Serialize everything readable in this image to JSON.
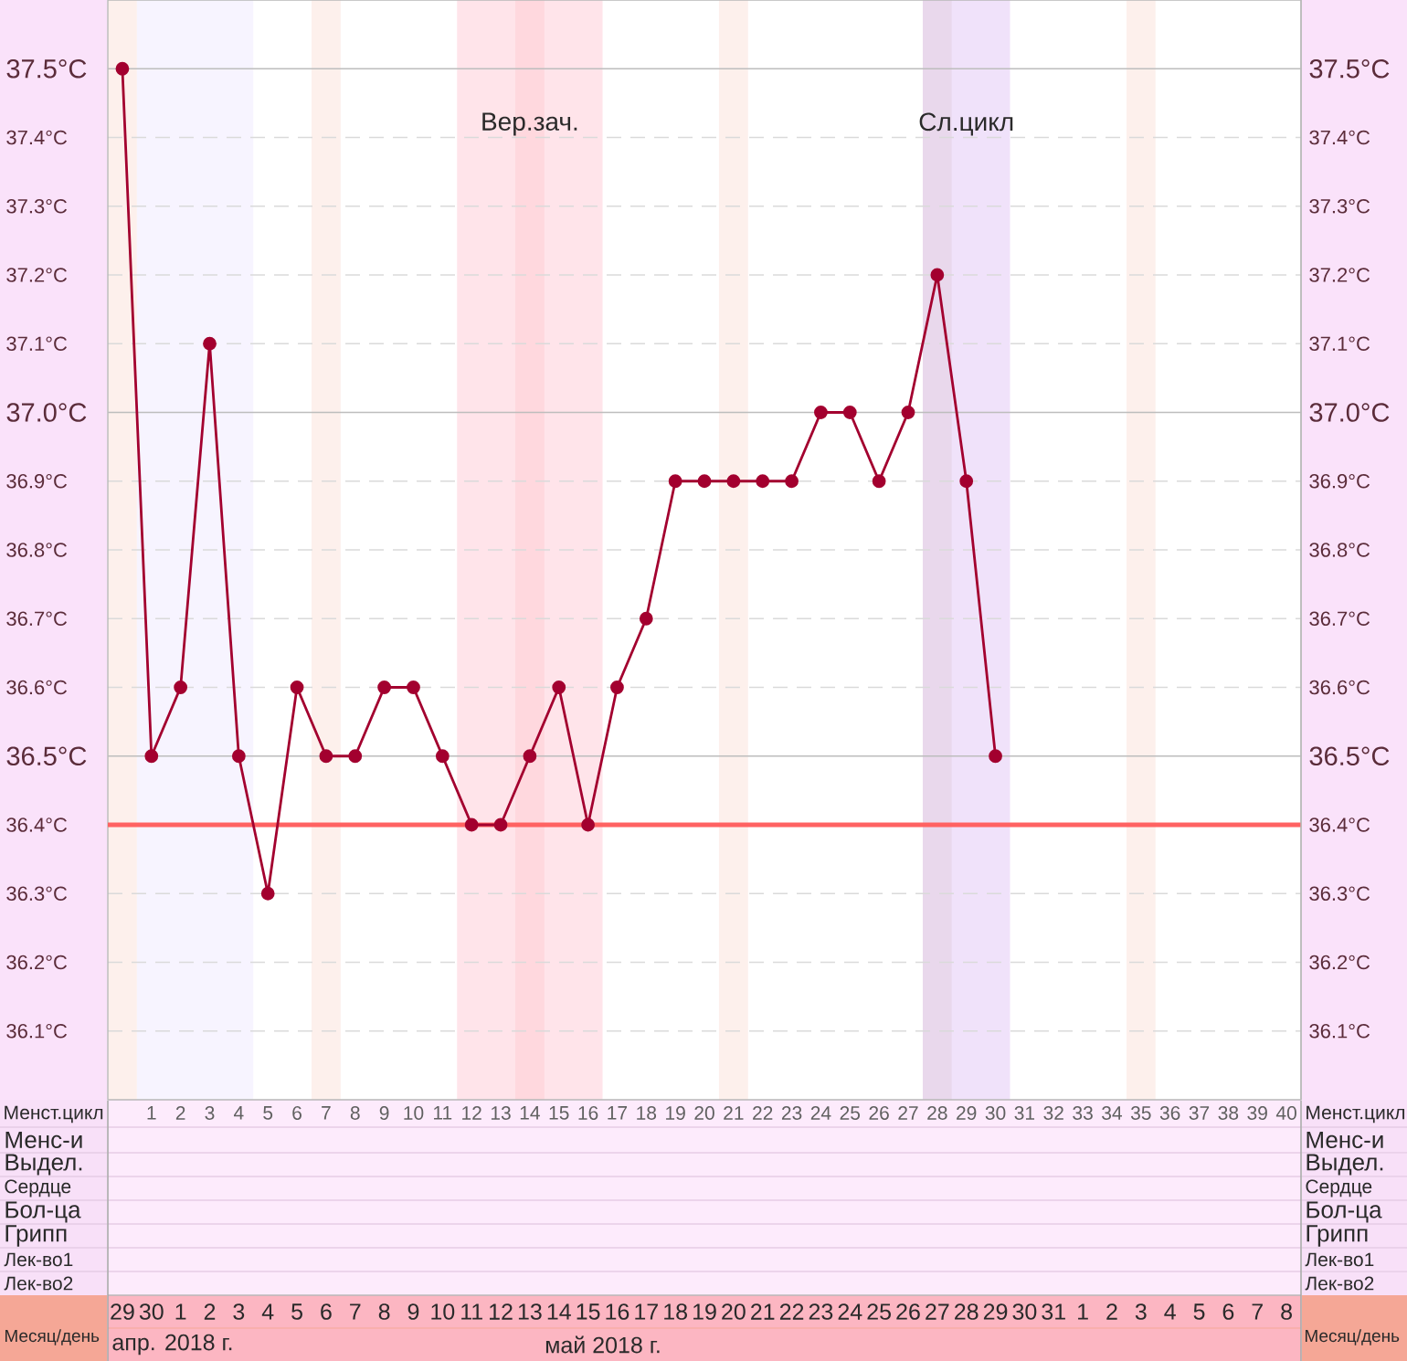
{
  "chart_data": {
    "type": "line",
    "xlabel": "Менст.цикл",
    "x": [
      0,
      1,
      2,
      3,
      4,
      5,
      6,
      7,
      8,
      9,
      10,
      11,
      12,
      13,
      14,
      15,
      16,
      17,
      18,
      19,
      20,
      21,
      22,
      23,
      24,
      25,
      26,
      27,
      28,
      29,
      30
    ],
    "values": [
      37.5,
      36.5,
      36.6,
      37.1,
      36.5,
      36.3,
      36.6,
      36.5,
      36.5,
      36.6,
      36.6,
      36.5,
      36.4,
      36.4,
      36.5,
      36.6,
      36.4,
      36.6,
      36.7,
      36.9,
      36.9,
      36.9,
      36.9,
      36.9,
      37.0,
      37.0,
      36.9,
      37.0,
      37.2,
      36.9,
      36.5
    ],
    "color": "#A3002F",
    "marker": "circle",
    "line_style": "solid",
    "xlim": [
      -0.5,
      40.5
    ],
    "xticks": [
      1,
      2,
      3,
      4,
      5,
      6,
      7,
      8,
      9,
      10,
      11,
      12,
      13,
      14,
      15,
      16,
      17,
      18,
      19,
      20,
      21,
      22,
      23,
      24,
      25,
      26,
      27,
      28,
      29,
      30,
      31,
      32,
      33,
      34,
      35,
      36,
      37,
      38,
      39,
      40
    ],
    "ylim": [
      36.0,
      37.6
    ],
    "yticks": [
      {
        "value": 36.1,
        "label": "36.1°C"
      },
      {
        "value": 36.2,
        "label": "36.2°C"
      },
      {
        "value": 36.3,
        "label": "36.3°C"
      },
      {
        "value": 36.4,
        "label": "36.4°C"
      },
      {
        "value": 36.5,
        "label": "36.5°C"
      },
      {
        "value": 36.6,
        "label": "36.6°C"
      },
      {
        "value": 36.7,
        "label": "36.7°C"
      },
      {
        "value": 36.8,
        "label": "36.8°C"
      },
      {
        "value": 36.9,
        "label": "36.9°C"
      },
      {
        "value": 37.0,
        "label": "37.0°C"
      },
      {
        "value": 37.1,
        "label": "37.1°C"
      },
      {
        "value": 37.2,
        "label": "37.2°C"
      },
      {
        "value": 37.3,
        "label": "37.3°C"
      },
      {
        "value": 37.4,
        "label": "37.4°C"
      },
      {
        "value": 37.5,
        "label": "37.5°C"
      }
    ],
    "y2lim": [
      36.0,
      37.6
    ],
    "y2ticks": [
      {
        "value": 36.1,
        "label": "36.1°C"
      },
      {
        "value": 36.2,
        "label": "36.2°C"
      },
      {
        "value": 36.3,
        "label": "36.3°C"
      },
      {
        "value": 36.4,
        "label": "36.4°C"
      },
      {
        "value": 36.5,
        "label": "36.5°C"
      },
      {
        "value": 36.6,
        "label": "36.6°C"
      },
      {
        "value": 36.7,
        "label": "36.7°C"
      },
      {
        "value": 36.8,
        "label": "36.8°C"
      },
      {
        "value": 36.9,
        "label": "36.9°C"
      },
      {
        "value": 37.0,
        "label": "37.0°C"
      },
      {
        "value": 37.1,
        "label": "37.1°C"
      },
      {
        "value": 37.2,
        "label": "37.2°C"
      },
      {
        "value": 37.3,
        "label": "37.3°C"
      },
      {
        "value": 37.4,
        "label": "37.4°C"
      },
      {
        "value": 37.5,
        "label": "37.5°C"
      }
    ],
    "x2label": "Месяц/день",
    "x2lim": [
      "2018-04-28T12:00",
      "2018-06-08T12:00"
    ],
    "x2ticks": [
      {
        "value": "2018-04-29",
        "label": "29"
      },
      {
        "value": "2018-04-30",
        "label": "30"
      },
      {
        "value": "2018-05-01",
        "label": "1"
      },
      {
        "value": "2018-05-02",
        "label": "2"
      },
      {
        "value": "2018-05-03",
        "label": "3"
      },
      {
        "value": "2018-05-04",
        "label": "4"
      },
      {
        "value": "2018-05-05",
        "label": "5"
      },
      {
        "value": "2018-05-06",
        "label": "6"
      },
      {
        "value": "2018-05-07",
        "label": "7"
      },
      {
        "value": "2018-05-08",
        "label": "8"
      },
      {
        "value": "2018-05-09",
        "label": "9"
      },
      {
        "value": "2018-05-10",
        "label": "10"
      },
      {
        "value": "2018-05-11",
        "label": "11"
      },
      {
        "value": "2018-05-12",
        "label": "12"
      },
      {
        "value": "2018-05-13",
        "label": "13"
      },
      {
        "value": "2018-05-14",
        "label": "14"
      },
      {
        "value": "2018-05-15",
        "label": "15"
      },
      {
        "value": "2018-05-16",
        "label": "16"
      },
      {
        "value": "2018-05-17",
        "label": "17"
      },
      {
        "value": "2018-05-18",
        "label": "18"
      },
      {
        "value": "2018-05-19",
        "label": "19"
      },
      {
        "value": "2018-05-20",
        "label": "20"
      },
      {
        "value": "2018-05-21",
        "label": "21"
      },
      {
        "value": "2018-05-22",
        "label": "22"
      },
      {
        "value": "2018-05-23",
        "label": "23"
      },
      {
        "value": "2018-05-24",
        "label": "24"
      },
      {
        "value": "2018-05-25",
        "label": "25"
      },
      {
        "value": "2018-05-26",
        "label": "26"
      },
      {
        "value": "2018-05-27",
        "label": "27"
      },
      {
        "value": "2018-05-28",
        "label": "28"
      },
      {
        "value": "2018-05-29",
        "label": "29"
      },
      {
        "value": "2018-05-30",
        "label": "30"
      },
      {
        "value": "2018-05-31",
        "label": "31"
      },
      {
        "value": "2018-06-01",
        "label": "1"
      },
      {
        "value": "2018-06-02",
        "label": "2"
      },
      {
        "value": "2018-06-03",
        "label": "3"
      },
      {
        "value": "2018-06-04",
        "label": "4"
      },
      {
        "value": "2018-06-05",
        "label": "5"
      },
      {
        "value": "2018-06-06",
        "label": "6"
      },
      {
        "value": "2018-06-07",
        "label": "7"
      },
      {
        "value": "2018-06-08",
        "label": "8"
      }
    ],
    "grid": "y",
    "ref_lines": [
      {
        "axis": "y",
        "value": 36.4,
        "color": "#FF6262"
      }
    ],
    "bands": [
      {
        "axis": "x",
        "from": -0.5,
        "to": 0.5,
        "color": "#FDF0EC"
      },
      {
        "axis": "x",
        "from": 0.5,
        "to": 4.5,
        "color": "#F7F4FF"
      },
      {
        "axis": "x",
        "from": 6.5,
        "to": 7.5,
        "color": "#FDF0EC"
      },
      {
        "axis": "x",
        "from": 11.5,
        "to": 16.5,
        "color": "#FFE4EA",
        "label": "Вер.зач."
      },
      {
        "axis": "x",
        "from": 13.5,
        "to": 14.5,
        "color": "#FFD8DE"
      },
      {
        "axis": "x",
        "from": 20.5,
        "to": 21.5,
        "color": "#FDF0EC"
      },
      {
        "axis": "x",
        "from": 27.5,
        "to": 30.5,
        "color": "#F0E2FA",
        "label": "Сл.цикл"
      },
      {
        "axis": "x",
        "from": 27.5,
        "to": 28.5,
        "color": "#E9D8EC"
      },
      {
        "axis": "x",
        "from": 34.5,
        "to": 35.5,
        "color": "#FDF0EC"
      }
    ],
    "annotations": [
      "Менс-и",
      "Выдел.",
      "Сердце",
      "Бол-ца",
      "Грипп",
      "Лек-во1",
      "Лек-во2",
      "апр. 2018 г.",
      "май 2018 г."
    ]
  }
}
